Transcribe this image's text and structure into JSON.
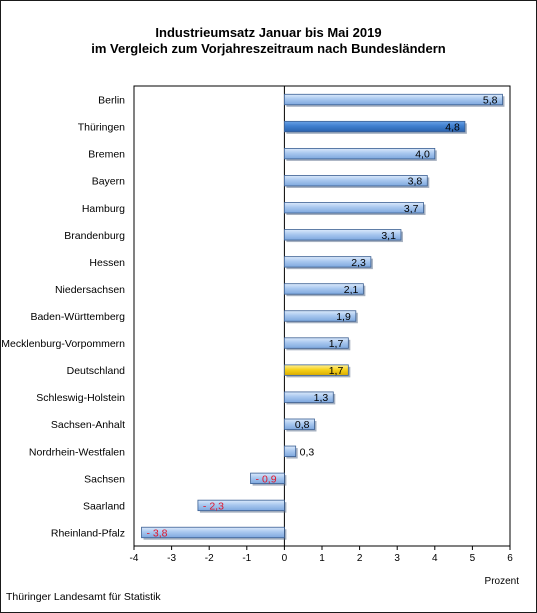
{
  "chart_data": {
    "type": "bar",
    "orientation": "horizontal",
    "title": "Industrieumsatz Januar bis Mai  2019",
    "subtitle": "im Vergleich zum Vorjahreszeitraum nach Bundesländern",
    "xlabel": "Prozent",
    "xlim": [
      -4,
      6
    ],
    "xticks": [
      "-4",
      "-3",
      "-2",
      "-1",
      "0",
      "1",
      "2",
      "3",
      "4",
      "5",
      "6"
    ],
    "grid": false,
    "categories": [
      "Berlin",
      "Thüringen",
      "Bremen",
      "Bayern",
      "Hamburg",
      "Brandenburg",
      "Hessen",
      "Niedersachsen",
      "Baden-Württemberg",
      "Mecklenburg-Vorpommern",
      "Deutschland",
      "Schleswig-Holstein",
      "Sachsen-Anhalt",
      "Nordrhein-Westfalen",
      "Sachsen",
      "Saarland",
      "Rheinland-Pfalz"
    ],
    "values": [
      5.8,
      4.8,
      4.0,
      3.8,
      3.7,
      3.1,
      2.3,
      2.1,
      1.9,
      1.7,
      1.7,
      1.3,
      0.8,
      0.3,
      -0.9,
      -2.3,
      -3.8
    ],
    "value_labels": [
      "5,8",
      "4,8",
      "4,0",
      "3,8",
      "3,7",
      "3,1",
      "2,3",
      "2,1",
      "1,9",
      "1,7",
      "1,7",
      "1,3",
      "0,8",
      "0,3",
      "- 0,9",
      "- 2,3",
      "- 3,8"
    ],
    "colors": {
      "default": "#a9c8ef",
      "highlight_thueringen": "#3f7fcf",
      "highlight_deutschland": "#f7d21c",
      "negative_label": "#e0162c"
    }
  },
  "footer": "Thüringer Landesamt für Statistik"
}
